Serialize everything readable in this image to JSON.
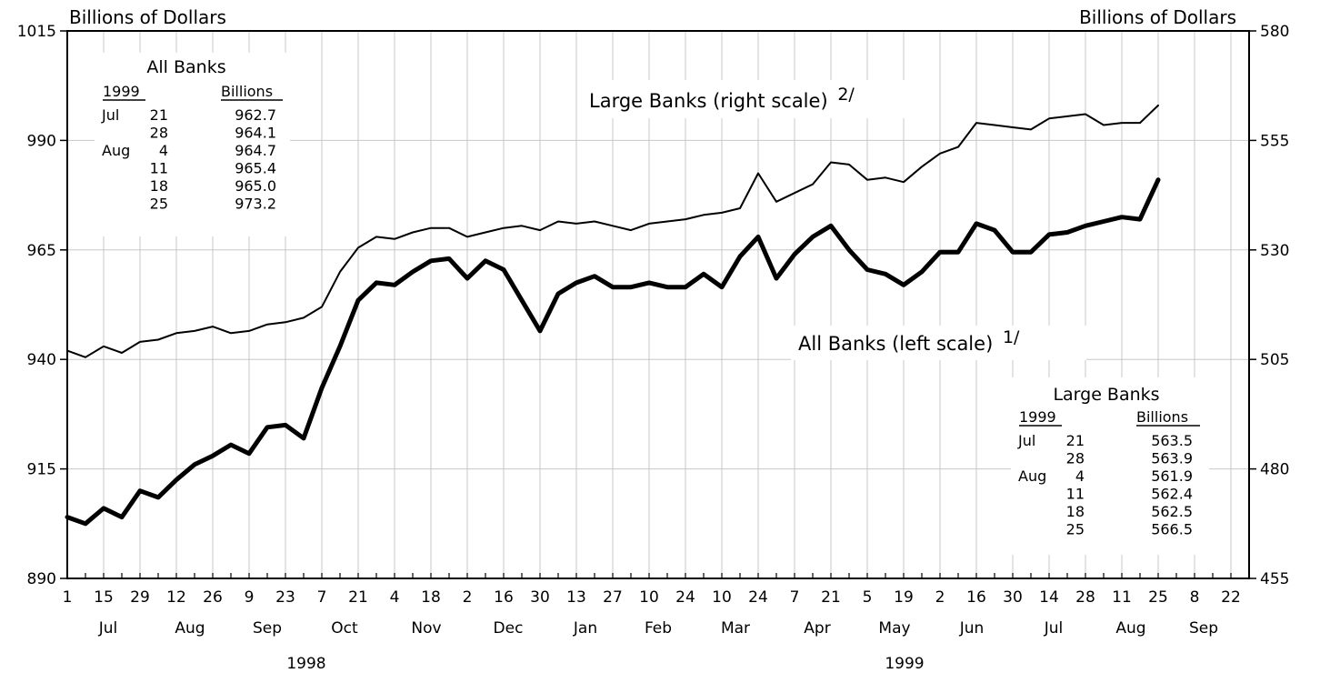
{
  "chart_data": {
    "type": "line",
    "left_axis_unit": "Billions of Dollars",
    "right_axis_unit": "Billions of Dollars",
    "left_ylim": [
      890,
      1015
    ],
    "right_ylim": [
      455,
      580
    ],
    "left_ticks": [
      "890",
      "915",
      "940",
      "965",
      "990",
      "1015"
    ],
    "right_ticks": [
      "455",
      "480",
      "505",
      "530",
      "555",
      "580"
    ],
    "grid": true,
    "x_tick_labels": [
      "1",
      "15",
      "29",
      "12",
      "26",
      "9",
      "23",
      "7",
      "21",
      "4",
      "18",
      "2",
      "16",
      "30",
      "13",
      "27",
      "10",
      "24",
      "10",
      "24",
      "7",
      "21",
      "5",
      "19",
      "2",
      "16",
      "30",
      "14",
      "28",
      "11",
      "25",
      "8",
      "22"
    ],
    "months": [
      "Jul",
      "Aug",
      "Sep",
      "Oct",
      "Nov",
      "Dec",
      "Jan",
      "Feb",
      "Mar",
      "Apr",
      "May",
      "Jun",
      "Jul",
      "Aug",
      "Sep"
    ],
    "years": [
      "1998",
      "1999"
    ],
    "series": [
      {
        "name": "All Banks (left scale)",
        "footnote": "1/",
        "axis": "left",
        "values": [
          904,
          902.5,
          906,
          904,
          910,
          908.5,
          912.5,
          916,
          918,
          920.5,
          918.5,
          924.5,
          925,
          922,
          933.5,
          943,
          953.5,
          957.5,
          957,
          960,
          962.5,
          963,
          958.5,
          962.5,
          960.5,
          953.5,
          946.5,
          955,
          957.5,
          959,
          956.5,
          956.5,
          957.5,
          956.5,
          956.5,
          959.5,
          956.5,
          963.5,
          968,
          958.5,
          964,
          968,
          970.5,
          965,
          960.5,
          959.5,
          957,
          960,
          964.5,
          964.5,
          971,
          969.5,
          964.5,
          964.5,
          968.5,
          969,
          970.5,
          971.5,
          972.5,
          972,
          981
        ]
      },
      {
        "name": "Large Banks (right scale)",
        "footnote": "2/",
        "axis": "right",
        "values": [
          507,
          505.5,
          508,
          506.5,
          509,
          509.5,
          511,
          511.5,
          512.5,
          511,
          511.5,
          513,
          513.5,
          514.5,
          517,
          525,
          530.5,
          533,
          532.5,
          534,
          535,
          535,
          533,
          534,
          535,
          535.5,
          534.5,
          536.5,
          536,
          536.5,
          535.5,
          534.5,
          536,
          536.5,
          537,
          538,
          538.5,
          539.5,
          547.5,
          541,
          543,
          545,
          550,
          549.5,
          546,
          546.5,
          545.5,
          549,
          552,
          553.5,
          559,
          558.5,
          558,
          557.5,
          560,
          560.5,
          561,
          558.5,
          559,
          559,
          563
        ]
      }
    ],
    "tables": [
      {
        "title": "All Banks",
        "col_year": "1999",
        "col_value": "Billions",
        "rows": [
          {
            "month": "Jul",
            "day": "21",
            "value": "962.7"
          },
          {
            "month": "",
            "day": "28",
            "value": "964.1"
          },
          {
            "month": "Aug",
            "day": "4",
            "value": "964.7"
          },
          {
            "month": "",
            "day": "11",
            "value": "965.4"
          },
          {
            "month": "",
            "day": "18",
            "value": "965.0"
          },
          {
            "month": "",
            "day": "25",
            "value": "973.2"
          }
        ]
      },
      {
        "title": "Large Banks",
        "col_year": "1999",
        "col_value": "Billions",
        "rows": [
          {
            "month": "Jul",
            "day": "21",
            "value": "563.5"
          },
          {
            "month": "",
            "day": "28",
            "value": "563.9"
          },
          {
            "month": "Aug",
            "day": "4",
            "value": "561.9"
          },
          {
            "month": "",
            "day": "11",
            "value": "562.4"
          },
          {
            "month": "",
            "day": "18",
            "value": "562.5"
          },
          {
            "month": "",
            "day": "25",
            "value": "566.5"
          }
        ]
      }
    ]
  }
}
